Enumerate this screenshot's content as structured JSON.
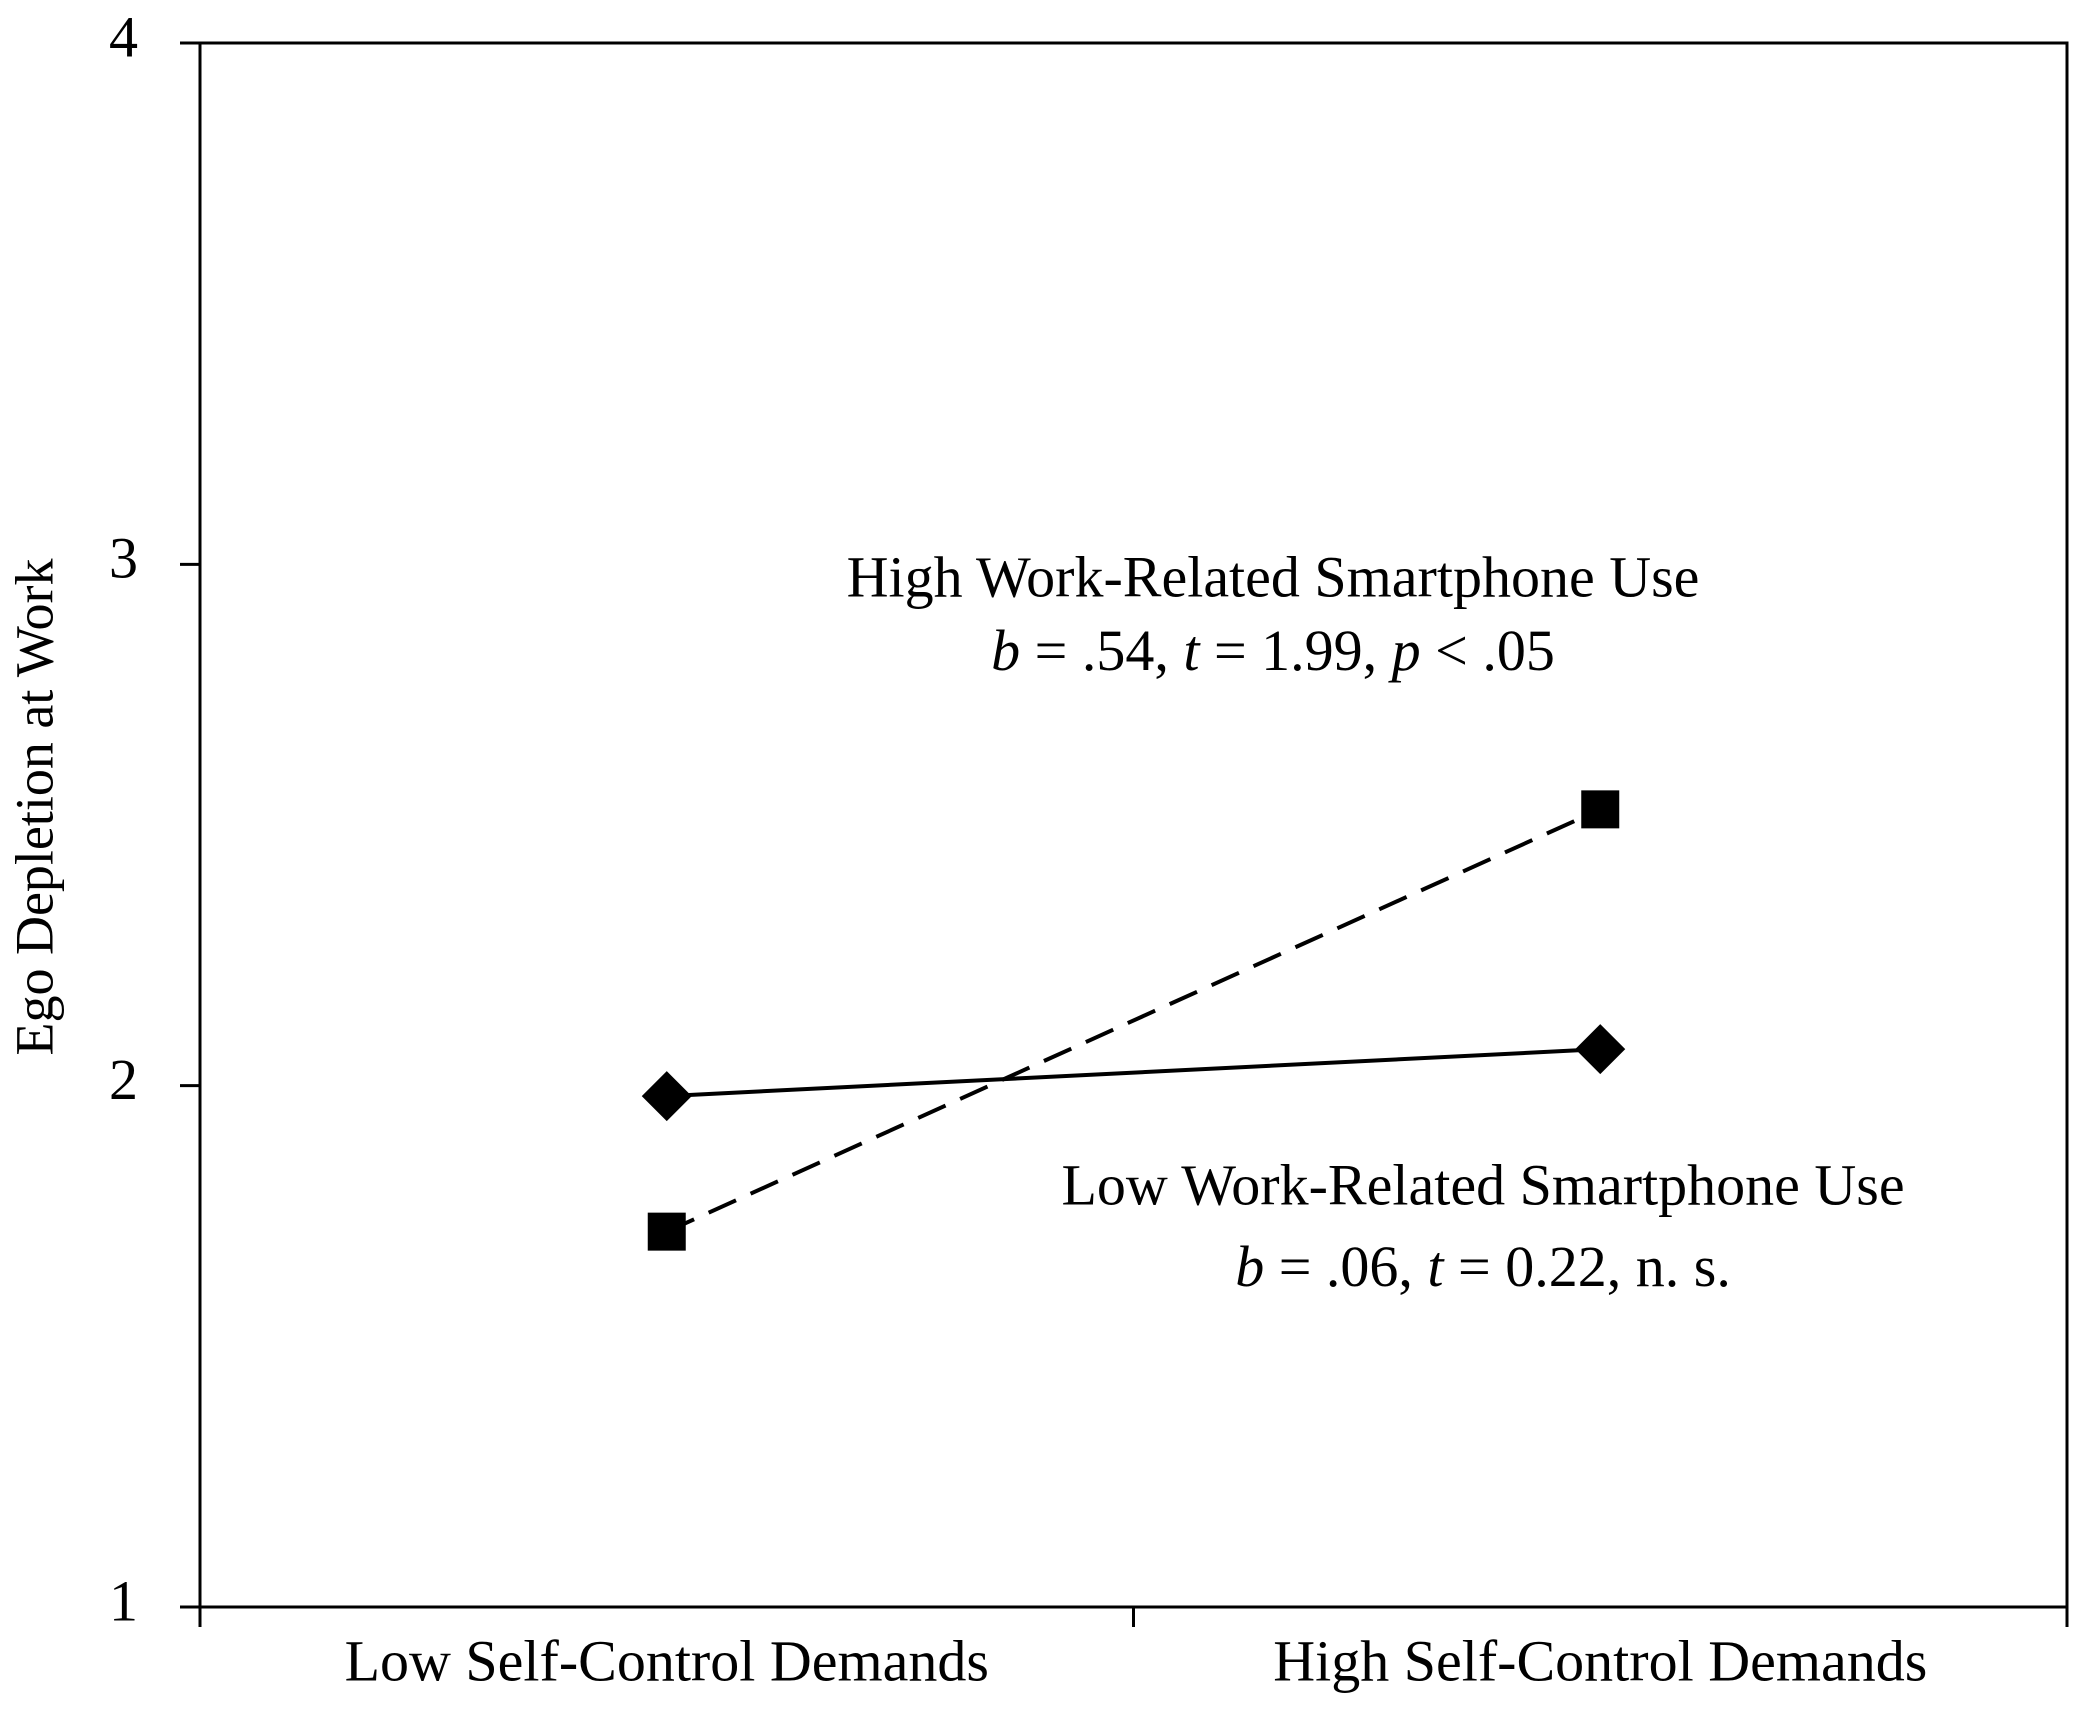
{
  "chart_data": {
    "type": "line",
    "y_label": "Ego Depletion at Work",
    "categories": [
      "Low Self-Control Demands",
      "High Self-Control Demands"
    ],
    "ylim": [
      1,
      4
    ],
    "yticks": [
      1,
      2,
      3,
      4
    ],
    "series": [
      {
        "name": "High Work-Related Smartphone Use",
        "color": "#000000",
        "line_style": "dashed",
        "marker": "square",
        "values": [
          1.72,
          2.53
        ],
        "stats": [
          {
            "text": "b",
            "italic": true
          },
          {
            "text": " = .54, "
          },
          {
            "text": "t",
            "italic": true
          },
          {
            "text": " = 1.99, "
          },
          {
            "text": "p",
            "italic": true
          },
          {
            "text": " < .05"
          }
        ]
      },
      {
        "name": "Low Work-Related Smartphone Use",
        "color": "#000000",
        "line_style": "solid",
        "marker": "diamond",
        "values": [
          1.98,
          2.07
        ],
        "stats": [
          {
            "text": "b",
            "italic": true
          },
          {
            "text": " = .06, "
          },
          {
            "text": "t",
            "italic": true
          },
          {
            "text": " = 0.22, n. s."
          }
        ]
      }
    ]
  }
}
